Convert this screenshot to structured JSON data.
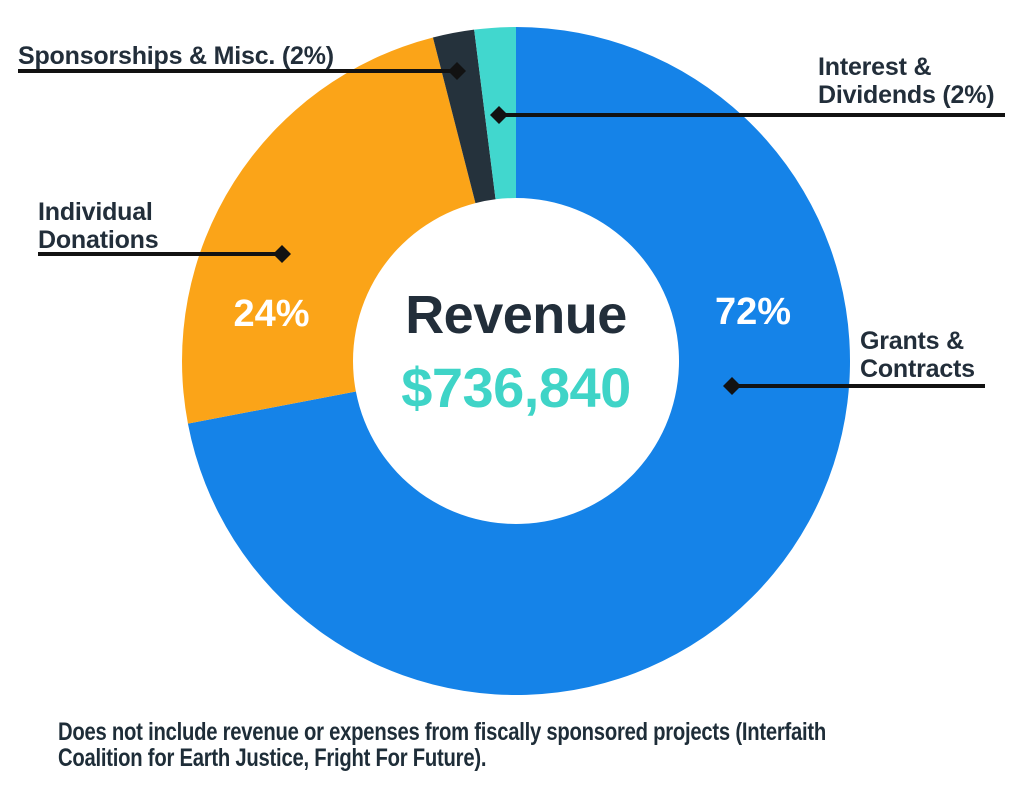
{
  "chart_data": {
    "type": "pie",
    "subtype": "donut",
    "title": "Revenue",
    "center_value": "$736,840",
    "start_angle_deg": 0,
    "direction": "clockwise",
    "legend": "none",
    "segments": [
      {
        "name": "Grants & Contracts",
        "pct": 72,
        "pct_label": "72%",
        "callout": "Grants & Contracts",
        "color": "#1583E8"
      },
      {
        "name": "Individual Donations",
        "pct": 24,
        "pct_label": "24%",
        "callout": "Individual Donations",
        "color": "#FBA418"
      },
      {
        "name": "Sponsorships & Misc.",
        "pct": 2,
        "pct_label": "2%",
        "callout": "Sponsorships & Misc. (2%)",
        "color": "#25323C"
      },
      {
        "name": "Interest & Dividends",
        "pct": 2,
        "pct_label": "2%",
        "callout": "Interest & Dividends (2%)",
        "color": "#41D7CE"
      }
    ]
  },
  "footnote": {
    "line1": "Does not include revenue or expenses from fiscally sponsored projects (Interfaith",
    "line2": "Coalition for Earth Justice, Fright For Future)."
  },
  "colors": {
    "background": "#FFFFFF",
    "label_text": "#222E3A",
    "center_title_text": "#222E3A",
    "center_value_text": "#3FD4C7",
    "footnote_text": "#1E2D38",
    "callout_line": "#121212",
    "percent_text": "#FFFFFF"
  }
}
